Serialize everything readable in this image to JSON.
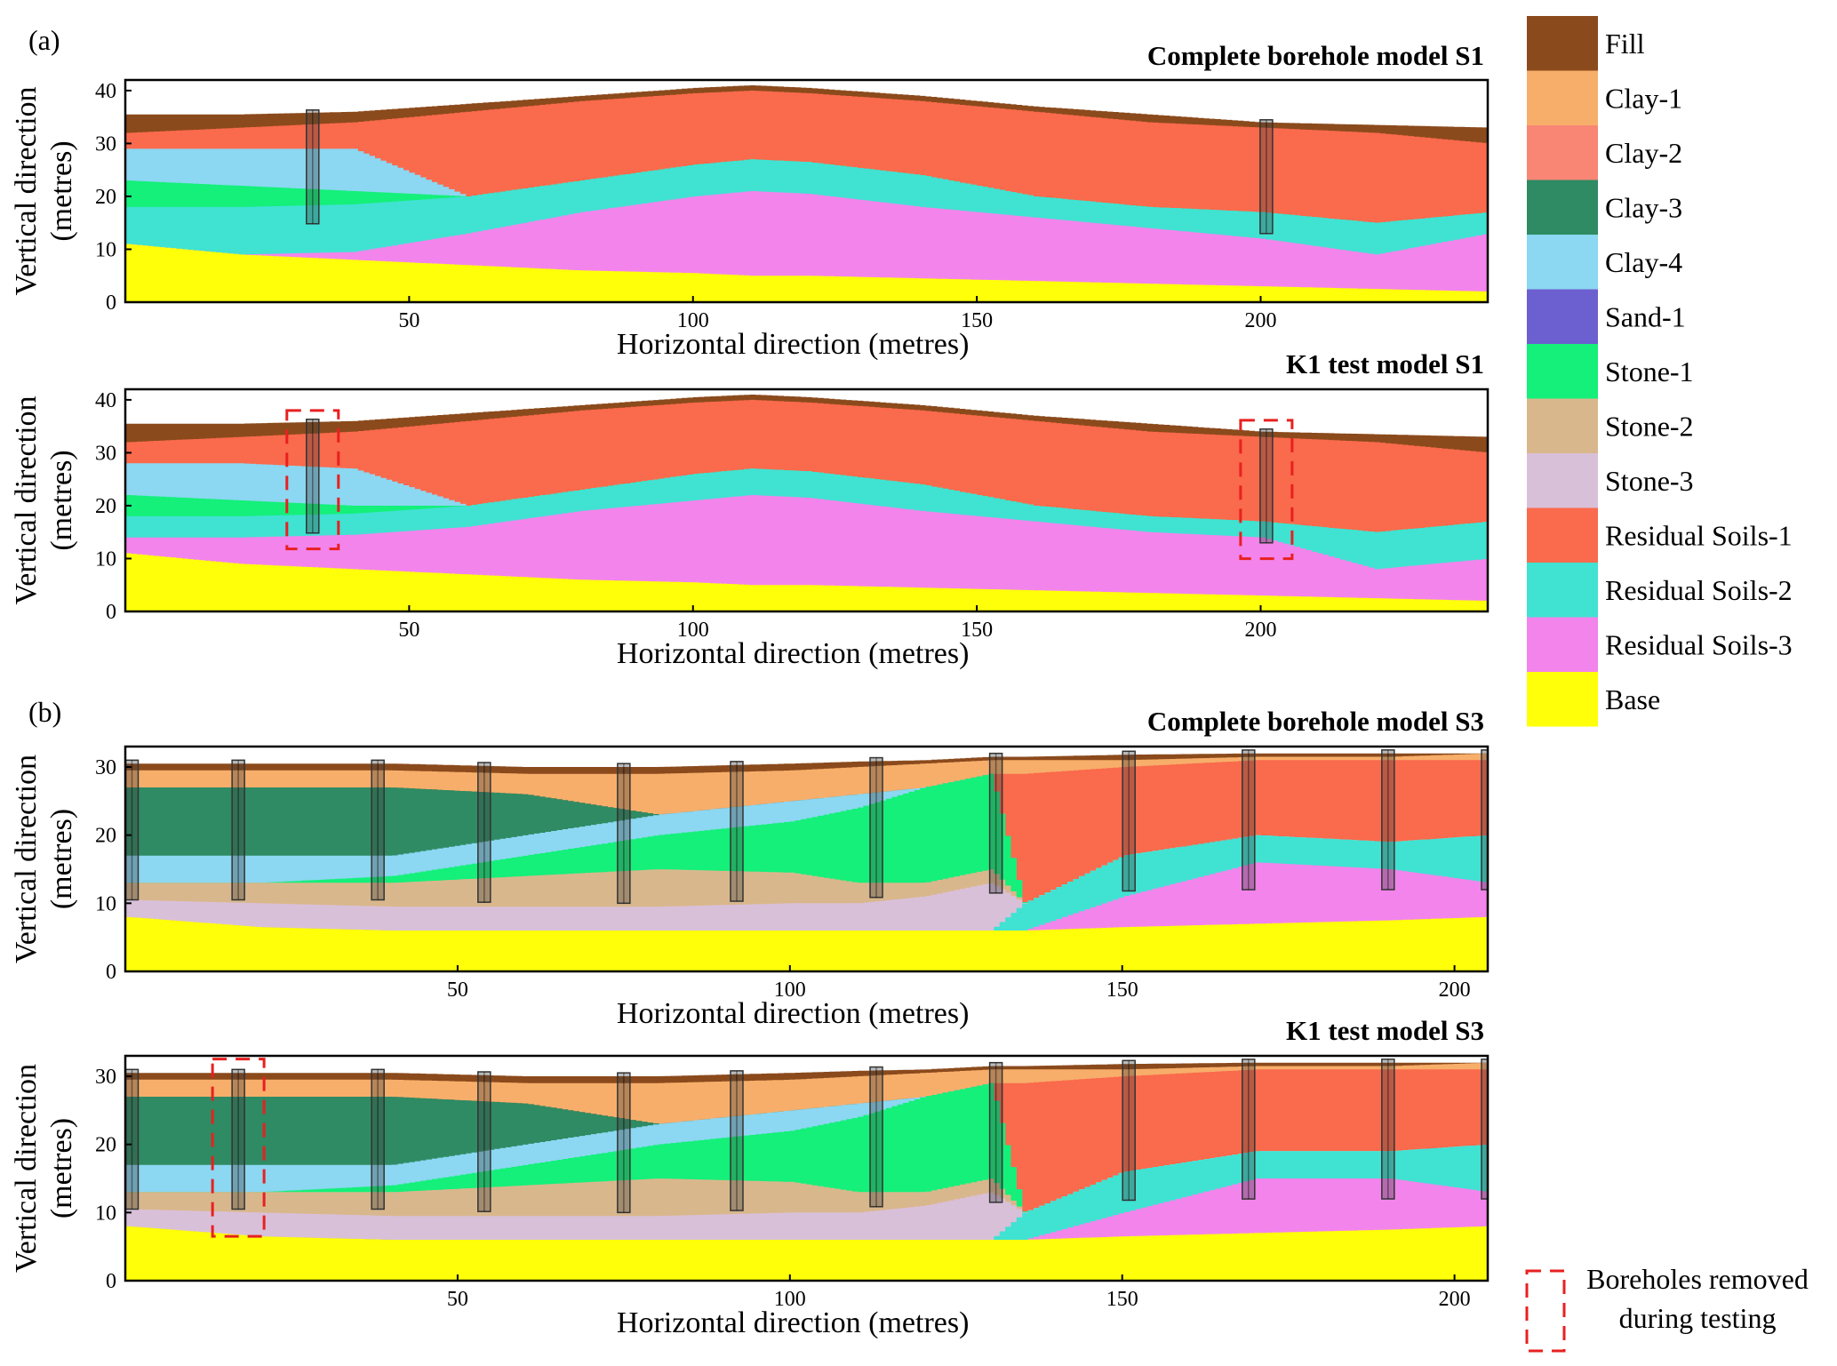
{
  "panel_labels": [
    "(a)",
    "(b)"
  ],
  "legend": [
    {
      "label": "Fill",
      "color": "#8B4A1C"
    },
    {
      "label": "Clay-1",
      "color": "#F7AE6A"
    },
    {
      "label": "Clay-2",
      "color": "#F98675"
    },
    {
      "label": "Clay-3",
      "color": "#2E8B63"
    },
    {
      "label": "Clay-4",
      "color": "#8CD7F2"
    },
    {
      "label": "Sand-1",
      "color": "#6C5FD0"
    },
    {
      "label": "Stone-1",
      "color": "#14F07A"
    },
    {
      "label": "Stone-2",
      "color": "#D9B78C"
    },
    {
      "label": "Stone-3",
      "color": "#D9C0D9"
    },
    {
      "label": "Residual Soils-1",
      "color": "#FA6A4C"
    },
    {
      "label": "Residual Soils-2",
      "color": "#40E2D2"
    },
    {
      "label": "Residual Soils-3",
      "color": "#F384EC"
    },
    {
      "label": "Base",
      "color": "#FFFF0A"
    }
  ],
  "removed_note": {
    "line1": "Boreholes removed",
    "line2": "during testing"
  },
  "panels": [
    {
      "title": "Complete borehole model S1",
      "xlabel": "Horizontal direction (metres)",
      "ylabel1": "Vertical direction",
      "ylabel2": "(metres)",
      "xticks": [
        "50",
        "100",
        "150",
        "200"
      ],
      "yticks": [
        "0",
        "10",
        "20",
        "30",
        "40"
      ]
    },
    {
      "title": "K1 test model S1",
      "xlabel": "Horizontal direction (metres)",
      "ylabel1": "Vertical direction",
      "ylabel2": "(metres)",
      "xticks": [
        "50",
        "100",
        "150",
        "200"
      ],
      "yticks": [
        "0",
        "10",
        "20",
        "30",
        "40"
      ]
    },
    {
      "title": "Complete borehole model S3",
      "xlabel": "Horizontal direction (metres)",
      "ylabel1": "Vertical direction",
      "ylabel2": "(metres)",
      "xticks": [
        "50",
        "100",
        "150",
        "200"
      ],
      "yticks": [
        "0",
        "10",
        "20",
        "30"
      ]
    },
    {
      "title": "K1 test model S3",
      "xlabel": "Horizontal direction (metres)",
      "ylabel1": "Vertical direction",
      "ylabel2": "(metres)",
      "xticks": [
        "50",
        "100",
        "150",
        "200"
      ],
      "yticks": [
        "0",
        "10",
        "20",
        "30"
      ]
    }
  ],
  "chart_data": [
    {
      "type": "area",
      "title": "Complete borehole model S1",
      "xlabel": "Horizontal direction (metres)",
      "ylabel": "Vertical direction (metres)",
      "xlim": [
        0,
        240
      ],
      "ylim": [
        0,
        42
      ],
      "x": [
        0,
        20,
        40,
        60,
        80,
        100,
        110,
        120,
        140,
        160,
        180,
        200,
        220,
        240
      ],
      "layers": [
        {
          "name": "Base",
          "top": [
            11,
            9,
            8,
            7,
            6,
            5.5,
            5,
            5,
            4.5,
            4,
            3.5,
            3,
            2.5,
            2
          ]
        },
        {
          "name": "Residual Soils-3",
          "top": [
            11,
            9,
            9.5,
            13,
            17,
            20,
            21,
            20.5,
            18,
            16,
            14,
            12,
            9,
            13
          ]
        },
        {
          "name": "Residual Soils-2",
          "top": [
            18,
            18,
            18.5,
            20,
            23,
            26,
            27,
            26.5,
            24,
            20,
            18,
            17,
            15,
            17
          ]
        },
        {
          "name": "Stone-1",
          "top": [
            23,
            22,
            21,
            20,
            23,
            26,
            27,
            26.5,
            24,
            20,
            18,
            17,
            15,
            17
          ]
        },
        {
          "name": "Clay-4",
          "top": [
            29,
            29,
            29,
            20,
            23,
            26,
            27,
            26.5,
            24,
            20,
            18,
            17,
            15,
            17
          ]
        },
        {
          "name": "Residual Soils-1",
          "top": [
            32,
            33,
            34,
            36,
            38,
            39.5,
            40,
            39.5,
            38,
            36,
            34,
            33,
            32,
            30
          ]
        },
        {
          "name": "Fill",
          "top": [
            35.5,
            35.5,
            36,
            37.5,
            39,
            40.5,
            41,
            40.5,
            39,
            37,
            35.5,
            34,
            33.5,
            33
          ]
        }
      ],
      "boreholes": [
        33,
        201
      ]
    },
    {
      "type": "area",
      "title": "K1 test model S1",
      "xlabel": "Horizontal direction (metres)",
      "ylabel": "Vertical direction (metres)",
      "xlim": [
        0,
        240
      ],
      "ylim": [
        0,
        42
      ],
      "x": [
        0,
        20,
        40,
        60,
        80,
        100,
        110,
        120,
        140,
        160,
        180,
        200,
        220,
        240
      ],
      "layers": [
        {
          "name": "Base",
          "top": [
            11,
            9,
            8,
            7,
            6,
            5.5,
            5,
            5,
            4.5,
            4,
            3.5,
            3,
            2.5,
            2
          ]
        },
        {
          "name": "Residual Soils-3",
          "top": [
            14,
            14,
            14.5,
            16,
            19,
            21,
            22,
            21.5,
            19,
            17,
            15,
            14,
            8,
            10
          ]
        },
        {
          "name": "Residual Soils-2",
          "top": [
            18,
            18,
            18.5,
            20,
            23,
            26,
            27,
            26.5,
            24,
            20,
            18,
            17,
            15,
            17
          ]
        },
        {
          "name": "Stone-1",
          "top": [
            22,
            21,
            20,
            20,
            23,
            26,
            27,
            26.5,
            24,
            20,
            18,
            17,
            15,
            17
          ]
        },
        {
          "name": "Clay-4",
          "top": [
            28,
            28,
            27,
            20,
            23,
            26,
            27,
            26.5,
            24,
            20,
            18,
            17,
            15,
            17
          ]
        },
        {
          "name": "Residual Soils-1",
          "top": [
            32,
            33,
            34,
            36,
            38,
            39.5,
            40,
            39.5,
            38,
            36,
            34,
            33,
            32,
            30
          ]
        },
        {
          "name": "Fill",
          "top": [
            35.5,
            35.5,
            36,
            37.5,
            39,
            40.5,
            41,
            40.5,
            39,
            37,
            35.5,
            34,
            33.5,
            33
          ]
        }
      ],
      "boreholes": [
        33,
        201
      ],
      "removed_boreholes": [
        33,
        201
      ]
    },
    {
      "type": "area",
      "title": "Complete borehole model S3",
      "xlabel": "Horizontal direction (metres)",
      "ylabel": "Vertical direction (metres)",
      "xlim": [
        0,
        205
      ],
      "ylim": [
        0,
        33
      ],
      "x": [
        0,
        20,
        40,
        60,
        80,
        100,
        110,
        120,
        130,
        135,
        150,
        170,
        190,
        205
      ],
      "layers": [
        {
          "name": "Base",
          "top": [
            8,
            6.5,
            6,
            6,
            6,
            6,
            6,
            6,
            6,
            6,
            6.5,
            7,
            7.5,
            8
          ]
        },
        {
          "name": "Residual Soils-3",
          "top": [
            8,
            6.5,
            6,
            6,
            6,
            6,
            6,
            6,
            6,
            6,
            11,
            16,
            15,
            13
          ]
        },
        {
          "name": "Residual Soils-2",
          "top": [
            8,
            6.5,
            6,
            6,
            6,
            6,
            6,
            6,
            6,
            10,
            17,
            20,
            19,
            20
          ]
        },
        {
          "name": "Stone-3",
          "top": [
            10.5,
            10,
            9.5,
            9.5,
            9.5,
            10,
            10,
            11,
            13,
            10,
            17,
            20,
            19,
            20
          ]
        },
        {
          "name": "Stone-2",
          "top": [
            13,
            13,
            13,
            14,
            15,
            14.5,
            13,
            13,
            15,
            10,
            17,
            20,
            19,
            20
          ]
        },
        {
          "name": "Stone-1",
          "top": [
            13,
            13,
            14,
            17,
            20,
            22,
            24,
            27,
            29,
            10,
            17,
            20,
            19,
            20
          ]
        },
        {
          "name": "Clay-4",
          "top": [
            17,
            17,
            17,
            20,
            23,
            25,
            26,
            27,
            29,
            10,
            17,
            20,
            19,
            20
          ]
        },
        {
          "name": "Clay-3",
          "top": [
            27,
            27,
            27,
            26,
            23,
            25,
            26,
            27,
            29,
            10,
            17,
            20,
            19,
            20
          ]
        },
        {
          "name": "Residual Soils-1",
          "top": [
            27,
            27,
            27,
            26,
            23,
            25,
            26,
            27,
            29,
            29,
            30,
            31,
            31,
            31
          ]
        },
        {
          "name": "Clay-1",
          "top": [
            29.5,
            29.5,
            29.5,
            29,
            29,
            29.5,
            30,
            30.5,
            31,
            31,
            31,
            31.5,
            31.5,
            32
          ]
        },
        {
          "name": "Fill",
          "top": [
            30.5,
            30.5,
            30.5,
            30,
            30,
            30.5,
            30.8,
            31,
            31.5,
            31.5,
            31.8,
            32,
            32,
            32
          ]
        }
      ],
      "boreholes": [
        1,
        17,
        38,
        54,
        75,
        92,
        113,
        131,
        151,
        169,
        190,
        205
      ]
    },
    {
      "type": "area",
      "title": "K1 test model S3",
      "xlabel": "Horizontal direction (metres)",
      "ylabel": "Vertical direction (metres)",
      "xlim": [
        0,
        205
      ],
      "ylim": [
        0,
        33
      ],
      "x": [
        0,
        20,
        40,
        60,
        80,
        100,
        110,
        120,
        130,
        135,
        150,
        170,
        190,
        205
      ],
      "layers": [
        {
          "name": "Base",
          "top": [
            8,
            6.5,
            6,
            6,
            6,
            6,
            6,
            6,
            6,
            6,
            6.5,
            7,
            7.5,
            8
          ]
        },
        {
          "name": "Residual Soils-3",
          "top": [
            8,
            6.5,
            6,
            6,
            6,
            6,
            6,
            6,
            6,
            6,
            10,
            15,
            15,
            13
          ]
        },
        {
          "name": "Residual Soils-2",
          "top": [
            8,
            6.5,
            6,
            6,
            6,
            6,
            6,
            6,
            6,
            10,
            16,
            19,
            19,
            20
          ]
        },
        {
          "name": "Stone-3",
          "top": [
            10.5,
            10,
            9.5,
            9.5,
            9.5,
            10,
            10,
            11,
            13,
            10,
            16,
            19,
            19,
            20
          ]
        },
        {
          "name": "Stone-2",
          "top": [
            13,
            13,
            13,
            14,
            15,
            14.5,
            13,
            13,
            15,
            10,
            16,
            19,
            19,
            20
          ]
        },
        {
          "name": "Stone-1",
          "top": [
            13,
            13,
            14,
            17,
            20,
            22,
            24,
            27,
            29,
            10,
            16,
            19,
            19,
            20
          ]
        },
        {
          "name": "Clay-4",
          "top": [
            17,
            17,
            17,
            20,
            23,
            25,
            26,
            27,
            29,
            10,
            16,
            19,
            19,
            20
          ]
        },
        {
          "name": "Clay-3",
          "top": [
            27,
            27,
            27,
            26,
            23,
            25,
            26,
            27,
            29,
            10,
            16,
            19,
            19,
            20
          ]
        },
        {
          "name": "Residual Soils-1",
          "top": [
            27,
            27,
            27,
            26,
            23,
            25,
            26,
            27,
            29,
            29,
            30,
            31,
            31,
            31
          ]
        },
        {
          "name": "Clay-1",
          "top": [
            29.5,
            29.5,
            29.5,
            29,
            29,
            29.5,
            30,
            30.5,
            31,
            31,
            31,
            31.5,
            31.5,
            32
          ]
        },
        {
          "name": "Fill",
          "top": [
            30.5,
            30.5,
            30.5,
            30,
            30,
            30.5,
            30.8,
            31,
            31.5,
            31.5,
            31.8,
            32,
            32,
            32
          ]
        }
      ],
      "boreholes": [
        1,
        17,
        38,
        54,
        75,
        92,
        113,
        131,
        151,
        169,
        190,
        205
      ],
      "removed_boreholes": [
        17
      ]
    }
  ]
}
